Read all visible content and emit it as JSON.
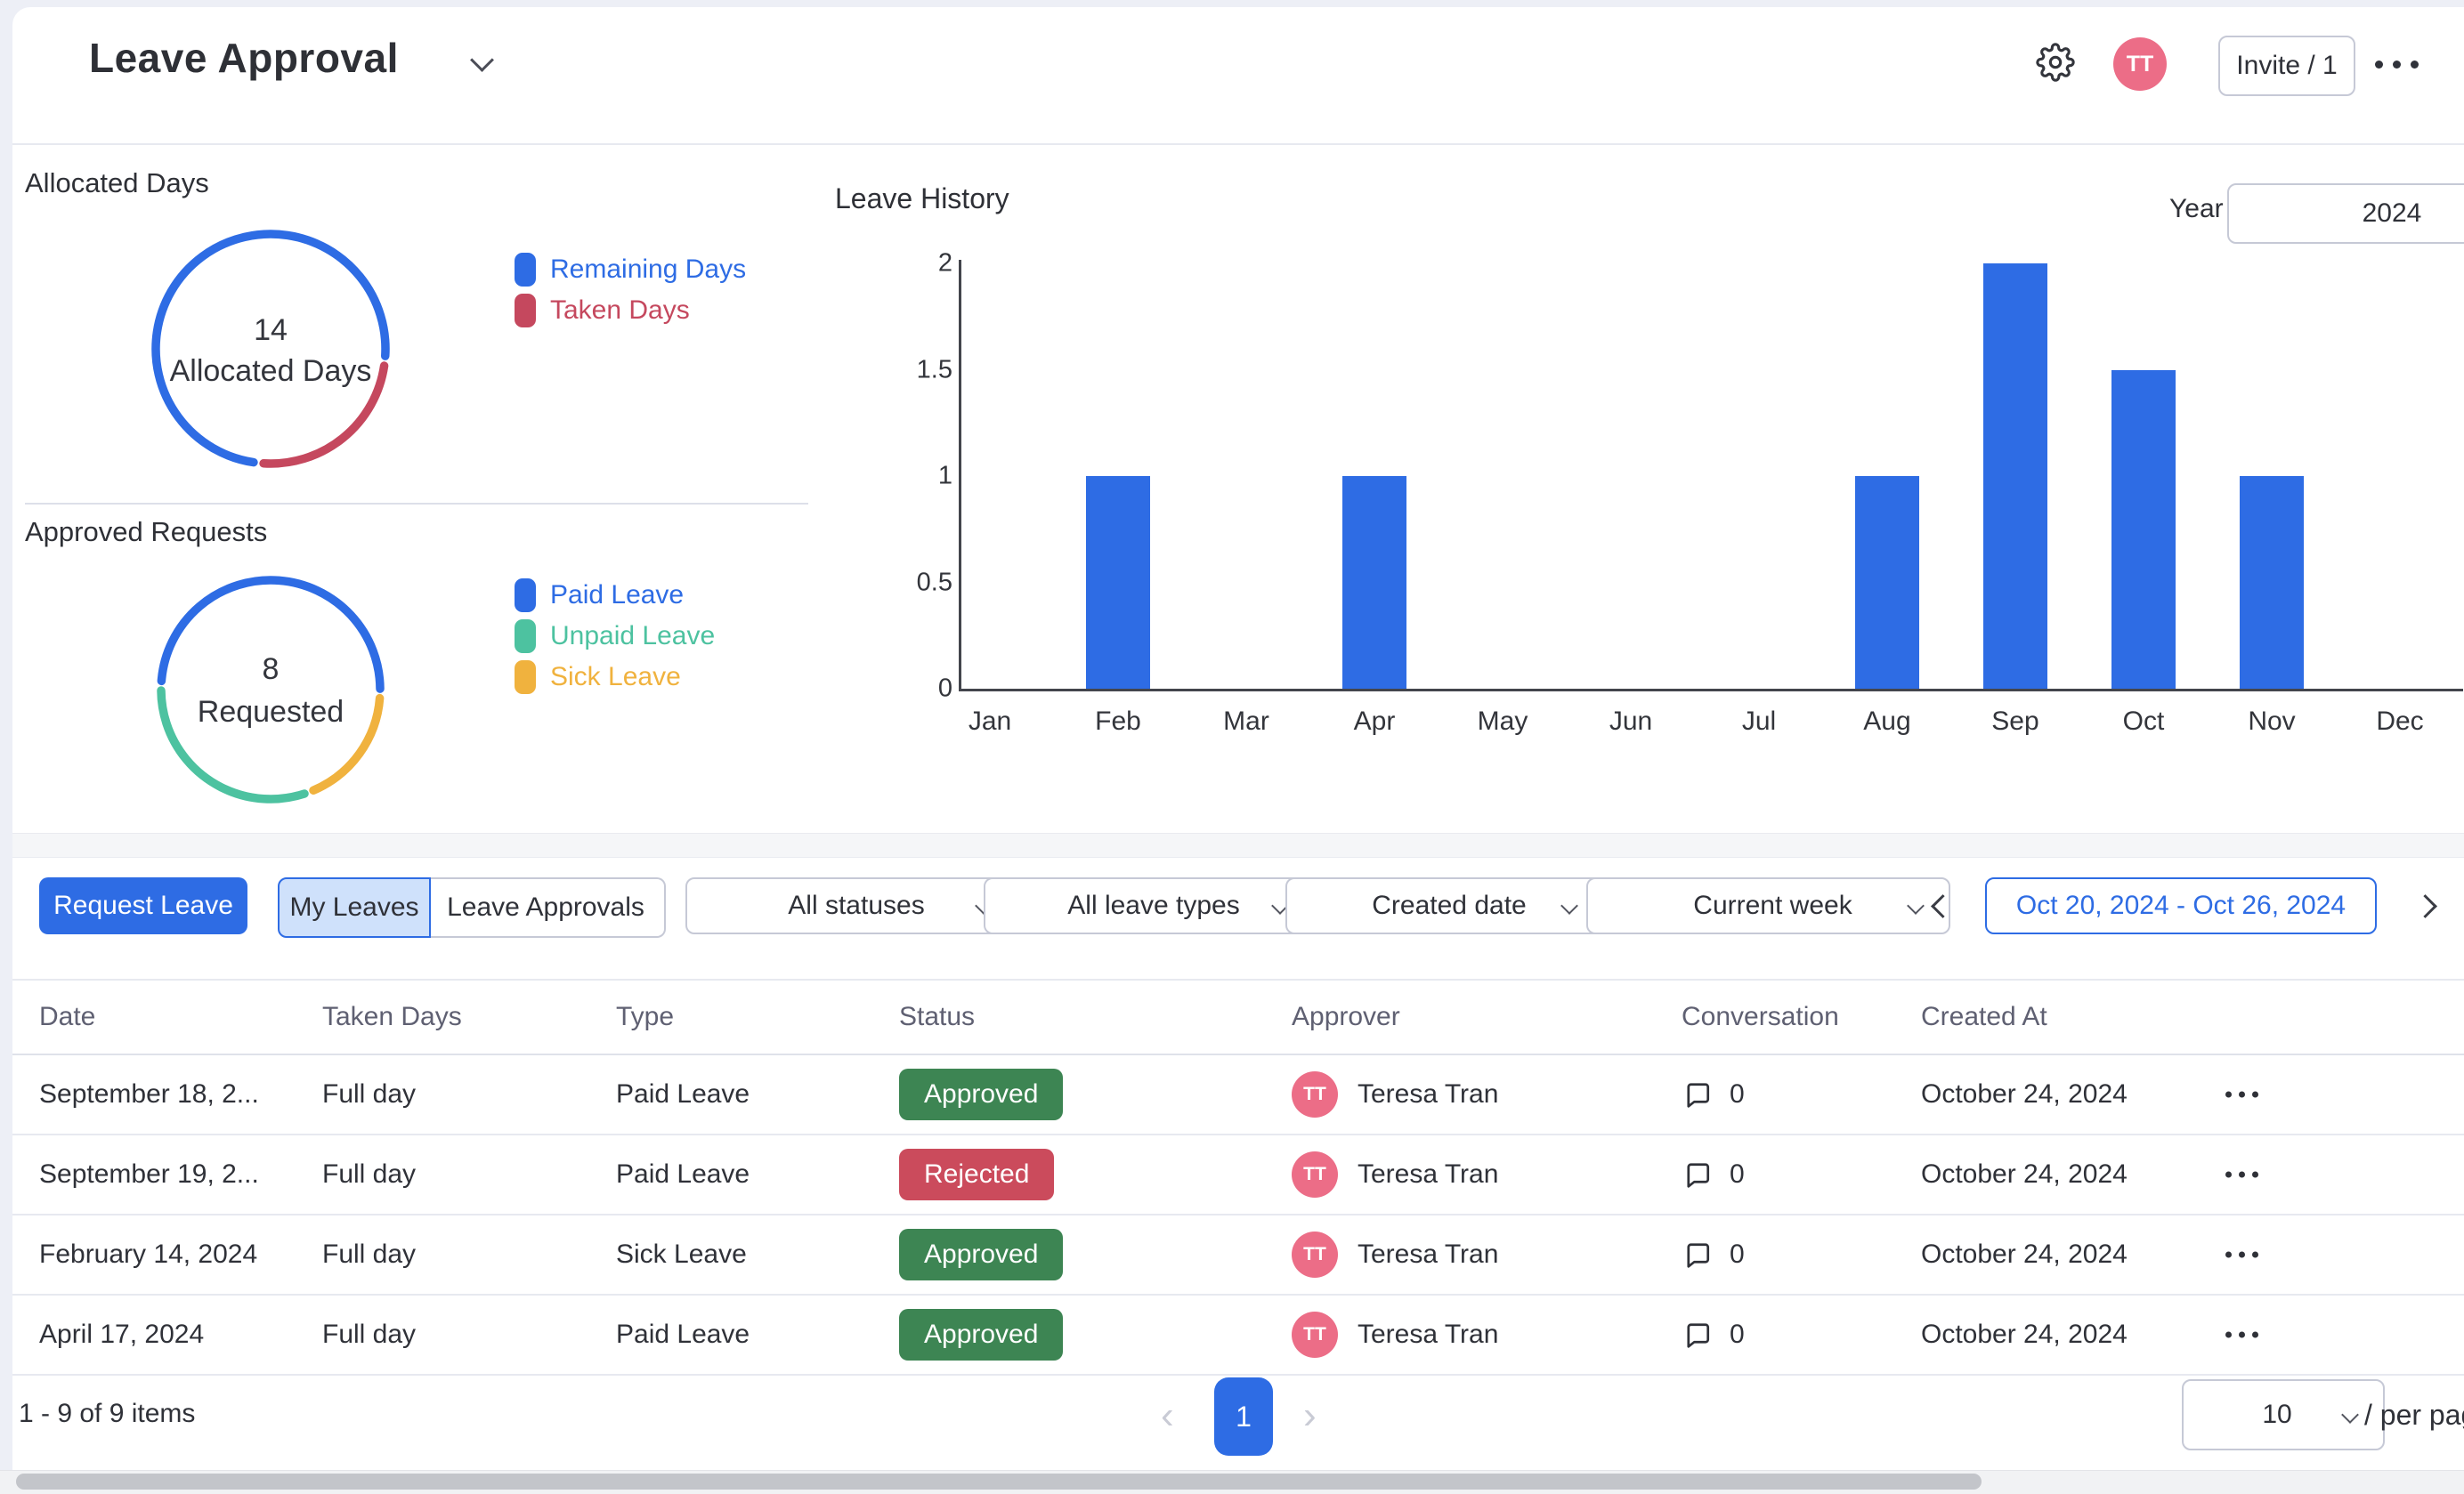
{
  "header": {
    "title": "Leave Approval",
    "invite_label": "Invite / 1",
    "avatar_initials": "TT"
  },
  "colors": {
    "primary_blue": "#2e6ce4",
    "taken_red": "#c5485e",
    "unpaid_green": "#4dc2a0",
    "sick_yellow": "#f0b23e",
    "approved_green": "#3d8553",
    "rejected_red": "#cb4b5c",
    "avatar_pink": "#ec6d87"
  },
  "dashboard": {
    "allocated": {
      "title": "Allocated Days",
      "center_value": "14",
      "center_label": "Allocated Days",
      "legend": [
        {
          "label": "Remaining Days",
          "color": "#2e6ce4"
        },
        {
          "label": "Taken Days",
          "color": "#c5485e"
        }
      ]
    },
    "approved": {
      "title": "Approved Requests",
      "center_value": "8",
      "center_label": "Requested",
      "legend": [
        {
          "label": "Paid Leave",
          "color": "#2e6ce4"
        },
        {
          "label": "Unpaid Leave",
          "color": "#4dc2a0"
        },
        {
          "label": "Sick Leave",
          "color": "#f0b23e"
        }
      ]
    },
    "history": {
      "title": "Leave History",
      "year_label": "Year",
      "year_value": "2024"
    }
  },
  "chart_data": [
    {
      "type": "doughnut",
      "title": "Allocated Days",
      "labels": [
        "Remaining Days",
        "Taken Days"
      ],
      "values": [
        10.5,
        3.5
      ],
      "colors": [
        "#2e6ce4",
        "#c5485e"
      ],
      "start_angle": 186,
      "center_text": [
        "14",
        "Allocated Days"
      ]
    },
    {
      "type": "doughnut",
      "title": "Approved Requests",
      "labels": [
        "Paid Leave",
        "Sick Leave",
        "Unpaid Leave"
      ],
      "values": [
        4,
        1.5,
        2.5
      ],
      "colors": [
        "#2e6ce4",
        "#f0b23e",
        "#4dc2a0"
      ],
      "start_angle": 272,
      "center_text": [
        "8",
        "Requested"
      ]
    },
    {
      "type": "bar",
      "title": "Leave History",
      "categories": [
        "Jan",
        "Feb",
        "Mar",
        "Apr",
        "May",
        "Jun",
        "Jul",
        "Aug",
        "Sep",
        "Oct",
        "Nov",
        "Dec"
      ],
      "values": [
        0,
        1,
        0,
        1,
        0,
        0,
        0,
        1,
        2,
        1.5,
        1,
        0
      ],
      "yticks": [
        0,
        0.5,
        1,
        1.5,
        2
      ],
      "ylim": [
        0,
        2
      ],
      "bar_color": "#2e6ce4",
      "legend_position": "none",
      "grid": false
    }
  ],
  "toolbar": {
    "request_leave": "Request Leave",
    "tab_my_leaves": "My Leaves",
    "tab_leave_approvals": "Leave Approvals",
    "statuses_filter": "All statuses",
    "leave_types_filter": "All leave types",
    "sort_filter": "Created date",
    "period_filter": "Current week",
    "date_range": "Oct 20, 2024 - Oct 26, 2024"
  },
  "table": {
    "columns": [
      "Date",
      "Taken Days",
      "Type",
      "Status",
      "Approver",
      "Conversation",
      "Created At"
    ],
    "rows": [
      {
        "date": "September 18, 2...",
        "taken_days": "Full day",
        "type": "Paid Leave",
        "status": "Approved",
        "approver": "Teresa Tran",
        "approver_initials": "TT",
        "conversation": "0",
        "created_at": "October 24, 2024"
      },
      {
        "date": "September 19, 2...",
        "taken_days": "Full day",
        "type": "Paid Leave",
        "status": "Rejected",
        "approver": "Teresa Tran",
        "approver_initials": "TT",
        "conversation": "0",
        "created_at": "October 24, 2024"
      },
      {
        "date": "February 14, 2024",
        "taken_days": "Full day",
        "type": "Sick Leave",
        "status": "Approved",
        "approver": "Teresa Tran",
        "approver_initials": "TT",
        "conversation": "0",
        "created_at": "October 24, 2024"
      },
      {
        "date": "April 17, 2024",
        "taken_days": "Full day",
        "type": "Paid Leave",
        "status": "Approved",
        "approver": "Teresa Tran",
        "approver_initials": "TT",
        "conversation": "0",
        "created_at": "October 24, 2024"
      }
    ]
  },
  "footer": {
    "items_summary": "1 - 9 of 9 items",
    "current_page": "1",
    "per_page": "10",
    "per_page_suffix": "/ per page"
  }
}
